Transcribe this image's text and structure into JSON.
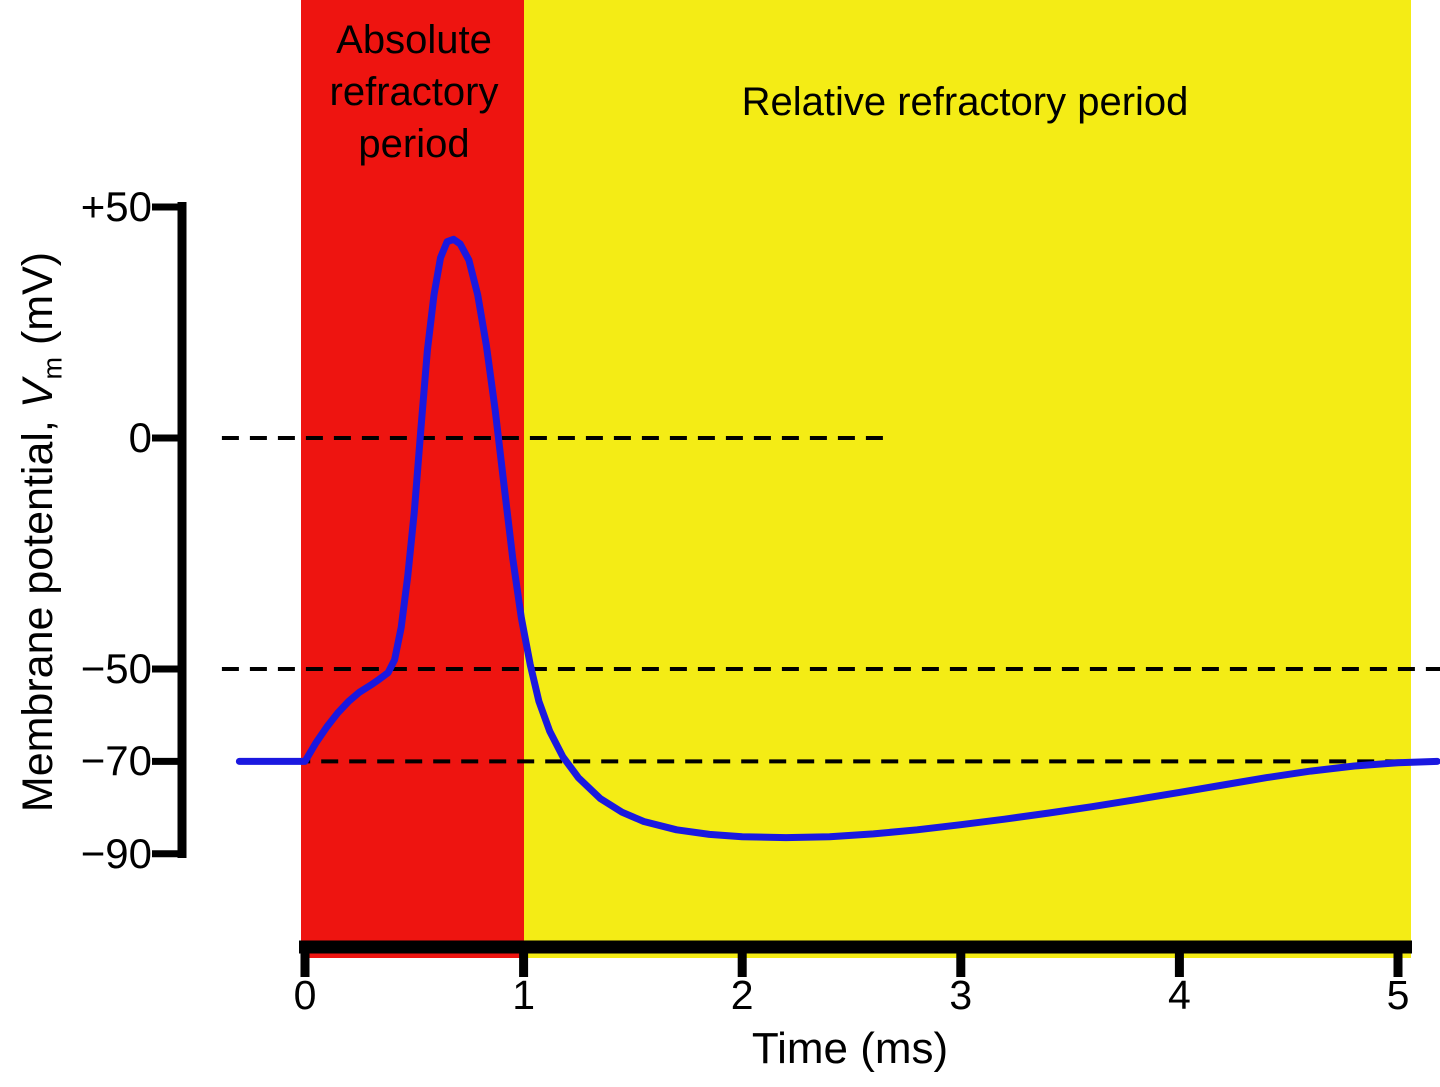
{
  "chart_data": {
    "type": "line",
    "title": "",
    "xlabel": "Time (ms)",
    "ylabel_parts": {
      "prefix": "Membrane potential, ",
      "symbol": "V",
      "subscript": "m",
      "suffix": " (mV)"
    },
    "xlim": [
      -0.3,
      5.2
    ],
    "ylim": [
      -95,
      55
    ],
    "grid": false,
    "legend": "none",
    "x_ticks": [
      "0",
      "1",
      "2",
      "3",
      "4",
      "5"
    ],
    "y_ticks": [
      {
        "value": 50,
        "label": "+50"
      },
      {
        "value": 0,
        "label": "0"
      },
      {
        "value": -50,
        "label": "−50"
      },
      {
        "value": -70,
        "label": "−70"
      },
      {
        "value": -90,
        "label": "−90"
      }
    ],
    "regions": [
      {
        "name": "Absolute refractory period",
        "t_start": -0.02,
        "t_end": 1.0,
        "color": "#ee1410"
      },
      {
        "name": "Relative refractory period",
        "t_start": 1.0,
        "t_end": 5.06,
        "color": "#f4ec15"
      }
    ],
    "reference_lines": [
      {
        "value": 0,
        "t_start": -0.38,
        "t_end": 2.67
      },
      {
        "value": -50,
        "t_start": -0.38,
        "t_end": 5.2
      },
      {
        "value": -70,
        "t_start": -0.31,
        "t_end": 5.2
      }
    ],
    "series": [
      {
        "name": "membrane-potential",
        "color": "#1a18e0",
        "points": [
          [
            -0.3,
            -70
          ],
          [
            -0.15,
            -70
          ],
          [
            0,
            -70
          ],
          [
            0.05,
            -66
          ],
          [
            0.1,
            -62.5
          ],
          [
            0.15,
            -59.5
          ],
          [
            0.2,
            -57
          ],
          [
            0.25,
            -55
          ],
          [
            0.3,
            -53.5
          ],
          [
            0.34,
            -52.2
          ],
          [
            0.38,
            -50.8
          ],
          [
            0.41,
            -48
          ],
          [
            0.44,
            -41
          ],
          [
            0.47,
            -30
          ],
          [
            0.5,
            -16
          ],
          [
            0.53,
            2
          ],
          [
            0.56,
            19
          ],
          [
            0.59,
            31
          ],
          [
            0.62,
            39
          ],
          [
            0.65,
            42.5
          ],
          [
            0.68,
            43
          ],
          [
            0.71,
            42
          ],
          [
            0.75,
            38.5
          ],
          [
            0.79,
            31
          ],
          [
            0.83,
            20
          ],
          [
            0.87,
            6
          ],
          [
            0.91,
            -10
          ],
          [
            0.95,
            -26
          ],
          [
            0.99,
            -39
          ],
          [
            1.03,
            -49
          ],
          [
            1.07,
            -57
          ],
          [
            1.12,
            -63.5
          ],
          [
            1.18,
            -69
          ],
          [
            1.25,
            -73.5
          ],
          [
            1.35,
            -78
          ],
          [
            1.45,
            -81
          ],
          [
            1.55,
            -83
          ],
          [
            1.7,
            -84.8
          ],
          [
            1.85,
            -85.8
          ],
          [
            2.0,
            -86.3
          ],
          [
            2.2,
            -86.5
          ],
          [
            2.4,
            -86.3
          ],
          [
            2.6,
            -85.7
          ],
          [
            2.8,
            -84.8
          ],
          [
            3.0,
            -83.7
          ],
          [
            3.2,
            -82.5
          ],
          [
            3.4,
            -81.2
          ],
          [
            3.6,
            -79.8
          ],
          [
            3.8,
            -78.3
          ],
          [
            4.0,
            -76.7
          ],
          [
            4.2,
            -75.1
          ],
          [
            4.4,
            -73.5
          ],
          [
            4.6,
            -72.1
          ],
          [
            4.8,
            -71
          ],
          [
            5.0,
            -70.3
          ],
          [
            5.18,
            -70
          ]
        ]
      }
    ]
  }
}
